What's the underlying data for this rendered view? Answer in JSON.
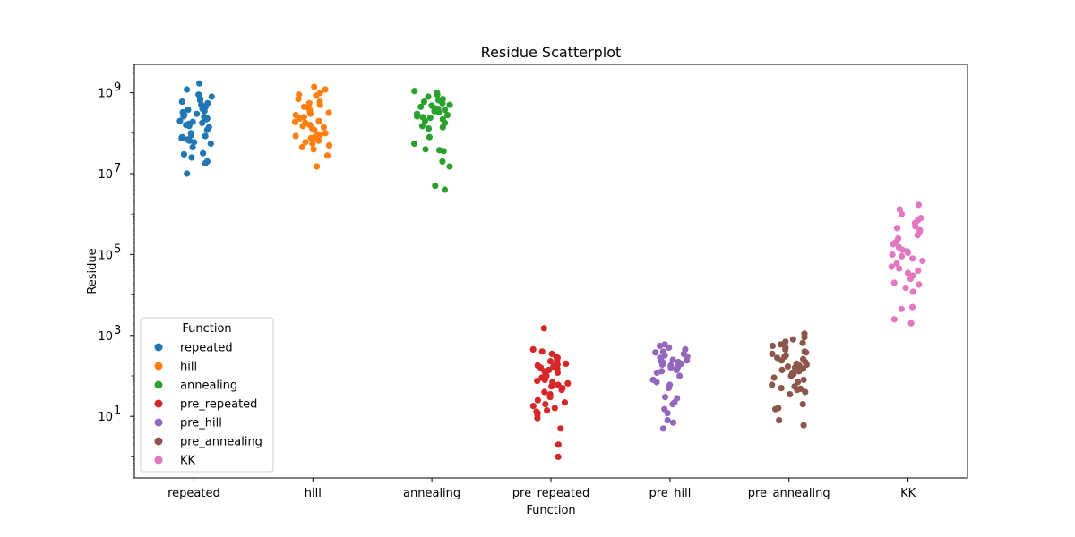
{
  "chart_data": {
    "type": "scatter",
    "title": "Residue Scatterplot",
    "xlabel": "Function",
    "ylabel": "Residue",
    "yscale": "log",
    "ylim": [
      0.3,
      5000000000
    ],
    "yticks": [
      {
        "value": 10,
        "base": "10",
        "exp": "1"
      },
      {
        "value": 1000,
        "base": "10",
        "exp": "3"
      },
      {
        "value": 100000,
        "base": "10",
        "exp": "5"
      },
      {
        "value": 10000000,
        "base": "10",
        "exp": "7"
      },
      {
        "value": 1000000000,
        "base": "10",
        "exp": "9"
      }
    ],
    "categories": [
      "repeated",
      "hill",
      "annealing",
      "pre_repeated",
      "pre_hill",
      "pre_annealing",
      "KK"
    ],
    "legend": {
      "title": "Function",
      "position": "lower-left"
    },
    "grid": false,
    "series": [
      {
        "name": "repeated",
        "color": "#1f77b4",
        "values": [
          1700000000,
          1200000000,
          900000000,
          800000000,
          700000000,
          650000000,
          600000000,
          550000000,
          500000000,
          450000000,
          400000000,
          380000000,
          350000000,
          330000000,
          300000000,
          280000000,
          260000000,
          250000000,
          230000000,
          220000000,
          200000000,
          190000000,
          180000000,
          170000000,
          160000000,
          150000000,
          140000000,
          120000000,
          100000000,
          90000000,
          85000000,
          80000000,
          75000000,
          70000000,
          65000000,
          60000000,
          55000000,
          45000000,
          32000000,
          30000000,
          25000000,
          20000000,
          18000000,
          10000000
        ]
      },
      {
        "name": "hill",
        "color": "#ff7f0e",
        "values": [
          1400000000,
          1200000000,
          1000000000,
          900000000,
          850000000,
          700000000,
          600000000,
          550000000,
          500000000,
          450000000,
          420000000,
          400000000,
          350000000,
          320000000,
          300000000,
          280000000,
          250000000,
          230000000,
          200000000,
          190000000,
          180000000,
          170000000,
          160000000,
          150000000,
          140000000,
          130000000,
          120000000,
          100000000,
          95000000,
          90000000,
          85000000,
          80000000,
          75000000,
          70000000,
          65000000,
          60000000,
          55000000,
          50000000,
          45000000,
          40000000,
          28000000,
          15000000
        ]
      },
      {
        "name": "annealing",
        "color": "#2ca02c",
        "values": [
          1100000000,
          1000000000,
          900000000,
          800000000,
          700000000,
          650000000,
          600000000,
          550000000,
          500000000,
          480000000,
          450000000,
          420000000,
          400000000,
          380000000,
          350000000,
          330000000,
          300000000,
          280000000,
          260000000,
          250000000,
          240000000,
          220000000,
          200000000,
          180000000,
          150000000,
          140000000,
          130000000,
          80000000,
          55000000,
          40000000,
          38000000,
          36000000,
          20000000,
          15000000,
          5000000,
          4000000
        ]
      },
      {
        "name": "pre_repeated",
        "color": "#d62728",
        "values": [
          1500,
          450,
          400,
          350,
          300,
          280,
          250,
          230,
          210,
          200,
          190,
          180,
          170,
          160,
          150,
          140,
          130,
          120,
          110,
          100,
          90,
          80,
          75,
          70,
          65,
          60,
          55,
          50,
          45,
          40,
          35,
          30,
          25,
          22,
          20,
          18,
          16,
          14,
          13,
          12,
          11,
          9,
          5,
          2,
          1
        ]
      },
      {
        "name": "pre_hill",
        "color": "#9467bd",
        "values": [
          600,
          550,
          500,
          450,
          400,
          380,
          350,
          320,
          300,
          280,
          260,
          250,
          240,
          230,
          220,
          210,
          200,
          190,
          180,
          170,
          160,
          150,
          140,
          130,
          120,
          100,
          80,
          70,
          60,
          50,
          30,
          28,
          22,
          20,
          15,
          12,
          8,
          7,
          5
        ]
      },
      {
        "name": "pre_annealing",
        "color": "#8c564b",
        "values": [
          1100,
          900,
          800,
          700,
          650,
          600,
          550,
          500,
          450,
          400,
          380,
          350,
          320,
          300,
          280,
          260,
          240,
          220,
          200,
          190,
          180,
          170,
          160,
          150,
          140,
          130,
          120,
          110,
          100,
          90,
          80,
          70,
          60,
          55,
          50,
          48,
          45,
          40,
          35,
          20,
          16,
          15,
          8,
          6
        ]
      },
      {
        "name": "KK",
        "color": "#e377c2",
        "values": [
          1700000,
          1300000,
          1000000,
          800000,
          700000,
          600000,
          500000,
          450000,
          400000,
          350000,
          300000,
          250000,
          200000,
          180000,
          150000,
          130000,
          120000,
          110000,
          100000,
          90000,
          80000,
          70000,
          60000,
          50000,
          45000,
          40000,
          35000,
          30000,
          25000,
          20000,
          18000,
          15000,
          12000,
          5000,
          4500,
          2500,
          2000
        ]
      }
    ]
  }
}
